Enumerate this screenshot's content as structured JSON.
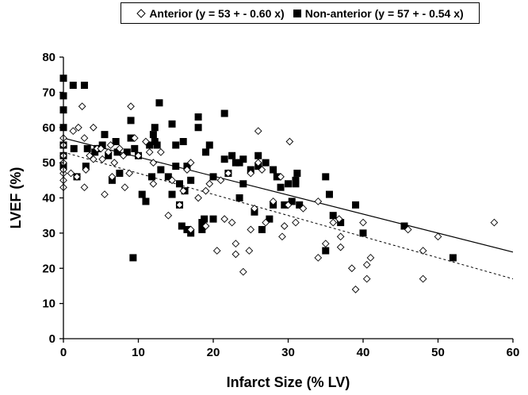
{
  "chart_data": {
    "type": "scatter",
    "xlabel": "Infarct Size (% LV)",
    "ylabel": "LVEF (%)",
    "xlim": [
      0,
      60
    ],
    "ylim": [
      0,
      80
    ],
    "x_ticks": [
      "0",
      "10",
      "20",
      "30",
      "40",
      "50",
      "60"
    ],
    "y_ticks": [
      "0",
      "10",
      "20",
      "30",
      "40",
      "50",
      "60",
      "70",
      "80"
    ],
    "grid": false,
    "legend_position": "top",
    "series": [
      {
        "name": "Anterior (y = 53 + - 0.60 x)",
        "marker": "open-diamond",
        "color": "#000000",
        "trendline": {
          "intercept": 53,
          "slope": -0.6,
          "style": "dashed"
        },
        "points": [
          [
            0,
            43
          ],
          [
            0,
            45
          ],
          [
            0,
            47
          ],
          [
            0,
            48
          ],
          [
            0,
            50
          ],
          [
            0,
            52
          ],
          [
            0,
            55
          ],
          [
            0,
            57
          ],
          [
            1,
            47
          ],
          [
            1.3,
            59
          ],
          [
            1.8,
            46
          ],
          [
            2,
            60
          ],
          [
            2.5,
            66
          ],
          [
            2.8,
            43
          ],
          [
            2.8,
            57
          ],
          [
            3,
            48
          ],
          [
            3.5,
            52
          ],
          [
            4,
            60
          ],
          [
            4,
            51
          ],
          [
            4.5,
            54
          ],
          [
            5,
            54
          ],
          [
            5.2,
            51
          ],
          [
            5.5,
            41
          ],
          [
            6,
            53
          ],
          [
            6.3,
            55
          ],
          [
            6.5,
            46
          ],
          [
            6.8,
            50
          ],
          [
            7.5,
            54
          ],
          [
            8,
            52
          ],
          [
            8.2,
            43
          ],
          [
            8.8,
            47
          ],
          [
            9,
            66
          ],
          [
            9.5,
            57
          ],
          [
            10,
            52
          ],
          [
            11,
            56
          ],
          [
            11.5,
            53
          ],
          [
            12,
            44
          ],
          [
            12,
            50
          ],
          [
            13,
            53
          ],
          [
            14,
            35
          ],
          [
            14.5,
            45
          ],
          [
            15.5,
            38
          ],
          [
            16,
            42
          ],
          [
            16.5,
            48
          ],
          [
            17,
            50
          ],
          [
            17,
            31
          ],
          [
            18,
            40
          ],
          [
            19,
            42
          ],
          [
            19,
            32
          ],
          [
            19.5,
            44
          ],
          [
            20.5,
            25
          ],
          [
            21,
            45
          ],
          [
            21.5,
            34
          ],
          [
            22,
            47
          ],
          [
            22.5,
            33
          ],
          [
            23,
            27
          ],
          [
            23,
            24
          ],
          [
            24,
            19
          ],
          [
            24.8,
            25
          ],
          [
            25,
            47
          ],
          [
            25,
            31
          ],
          [
            25.5,
            37
          ],
          [
            26,
            59
          ],
          [
            26,
            50
          ],
          [
            26.5,
            48
          ],
          [
            27,
            33
          ],
          [
            28,
            39
          ],
          [
            29,
            46
          ],
          [
            29.2,
            29
          ],
          [
            29.5,
            32
          ],
          [
            30,
            38
          ],
          [
            30.2,
            56
          ],
          [
            31,
            33
          ],
          [
            32,
            37
          ],
          [
            34,
            23
          ],
          [
            34,
            39
          ],
          [
            35,
            27
          ],
          [
            36,
            33
          ],
          [
            36.8,
            34
          ],
          [
            37,
            26
          ],
          [
            37,
            29
          ],
          [
            38.5,
            20
          ],
          [
            39,
            14
          ],
          [
            40,
            33
          ],
          [
            40.5,
            21
          ],
          [
            40.5,
            17
          ],
          [
            41,
            23
          ],
          [
            46,
            31
          ],
          [
            48,
            25
          ],
          [
            48,
            17
          ],
          [
            50,
            29
          ],
          [
            57.5,
            33
          ]
        ]
      },
      {
        "name": "Non-anterior (y = 57 + - 0.54 x)",
        "marker": "filled-square",
        "color": "#000000",
        "trendline": {
          "intercept": 57,
          "slope": -0.54,
          "style": "solid"
        },
        "points": [
          [
            0,
            74
          ],
          [
            0,
            69
          ],
          [
            0,
            65
          ],
          [
            0,
            60
          ],
          [
            0,
            55
          ],
          [
            0,
            52
          ],
          [
            0,
            49
          ],
          [
            1.3,
            72
          ],
          [
            1.4,
            54
          ],
          [
            1.8,
            46
          ],
          [
            2.8,
            72
          ],
          [
            3,
            49
          ],
          [
            3.2,
            54
          ],
          [
            4.2,
            53
          ],
          [
            4.5,
            54
          ],
          [
            5.2,
            55
          ],
          [
            5.5,
            58
          ],
          [
            6,
            52
          ],
          [
            6.5,
            45
          ],
          [
            7,
            56
          ],
          [
            7.2,
            53
          ],
          [
            7.5,
            47
          ],
          [
            8.5,
            53
          ],
          [
            9,
            62
          ],
          [
            9,
            57
          ],
          [
            9.5,
            54
          ],
          [
            9.3,
            23
          ],
          [
            10,
            52
          ],
          [
            10.5,
            41
          ],
          [
            11,
            39
          ],
          [
            11.5,
            55
          ],
          [
            11.8,
            46
          ],
          [
            12,
            58
          ],
          [
            12.2,
            60
          ],
          [
            12.2,
            56
          ],
          [
            12.5,
            55
          ],
          [
            12.8,
            67
          ],
          [
            13,
            48
          ],
          [
            14,
            46
          ],
          [
            14.5,
            61
          ],
          [
            14.5,
            41
          ],
          [
            15,
            55
          ],
          [
            15,
            49
          ],
          [
            15.5,
            44
          ],
          [
            15.5,
            38
          ],
          [
            15.8,
            32
          ],
          [
            16,
            56
          ],
          [
            16.2,
            42
          ],
          [
            16.5,
            49
          ],
          [
            16.5,
            31
          ],
          [
            17,
            45
          ],
          [
            17,
            30
          ],
          [
            18,
            63
          ],
          [
            18,
            60
          ],
          [
            18.5,
            33
          ],
          [
            18.5,
            31
          ],
          [
            18.8,
            34
          ],
          [
            19,
            53
          ],
          [
            19.5,
            55
          ],
          [
            20,
            46
          ],
          [
            20,
            34
          ],
          [
            21.5,
            64
          ],
          [
            21.5,
            51
          ],
          [
            22,
            47
          ],
          [
            22.5,
            52
          ],
          [
            23,
            50
          ],
          [
            23.5,
            50
          ],
          [
            23.5,
            40
          ],
          [
            24,
            51
          ],
          [
            24,
            44
          ],
          [
            25,
            48
          ],
          [
            25.5,
            36
          ],
          [
            26,
            52
          ],
          [
            26,
            49
          ],
          [
            26.5,
            31
          ],
          [
            27,
            50
          ],
          [
            27.5,
            34
          ],
          [
            28,
            48
          ],
          [
            28,
            38
          ],
          [
            28.5,
            46
          ],
          [
            29,
            43
          ],
          [
            29.5,
            38
          ],
          [
            30,
            44
          ],
          [
            30.5,
            39
          ],
          [
            31,
            45
          ],
          [
            31,
            44
          ],
          [
            31.2,
            47
          ],
          [
            31.5,
            38
          ],
          [
            35,
            46
          ],
          [
            35,
            25
          ],
          [
            35.5,
            41
          ],
          [
            36,
            35
          ],
          [
            37,
            33
          ],
          [
            39,
            38
          ],
          [
            40,
            30
          ],
          [
            45.5,
            32
          ],
          [
            52,
            23
          ]
        ]
      }
    ]
  }
}
